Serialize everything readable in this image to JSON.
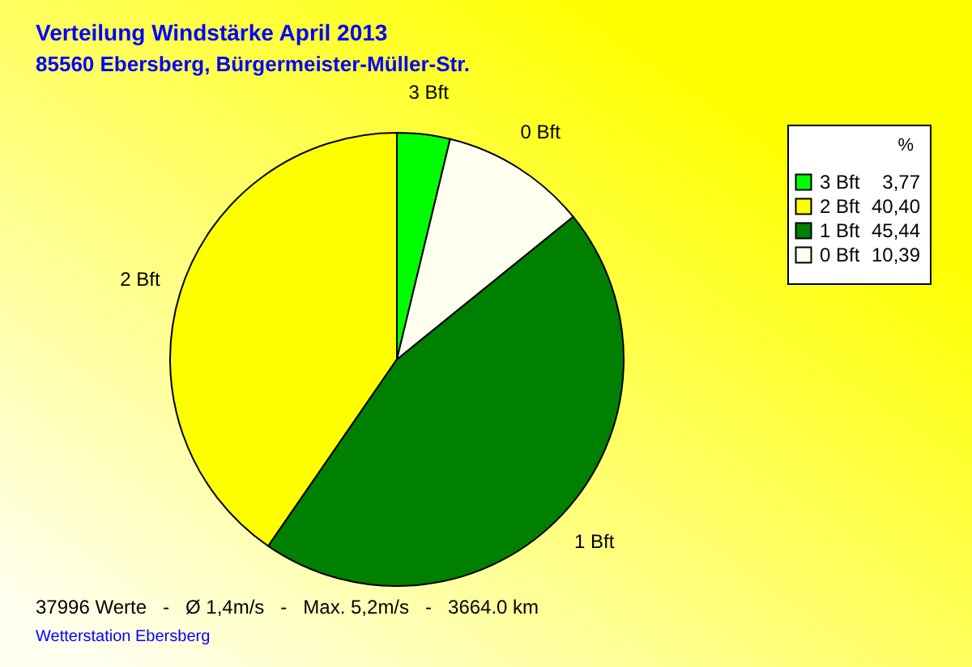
{
  "chart_data": {
    "type": "pie",
    "title": "Verteilung Windstärke  April 2013",
    "subtitle": "85560 Ebersberg, Bürgermeister-Müller-Str.",
    "categories": [
      "3 Bft",
      "2 Bft",
      "1 Bft",
      "0 Bft"
    ],
    "values": [
      3.77,
      40.4,
      45.44,
      10.39
    ],
    "value_labels": [
      "3,77",
      "40,40",
      "45,44",
      "10,39"
    ],
    "colors": [
      "#00ff00",
      "#ffff00",
      "#008000",
      "#fffff0"
    ],
    "legend_title": "%",
    "legend": "top right",
    "annotations": [
      "37996 Werte   -   Ø 1,4m/s   -   Max. 5,2m/s   -   3664.0 km",
      "Wetterstation Ebersberg"
    ]
  }
}
